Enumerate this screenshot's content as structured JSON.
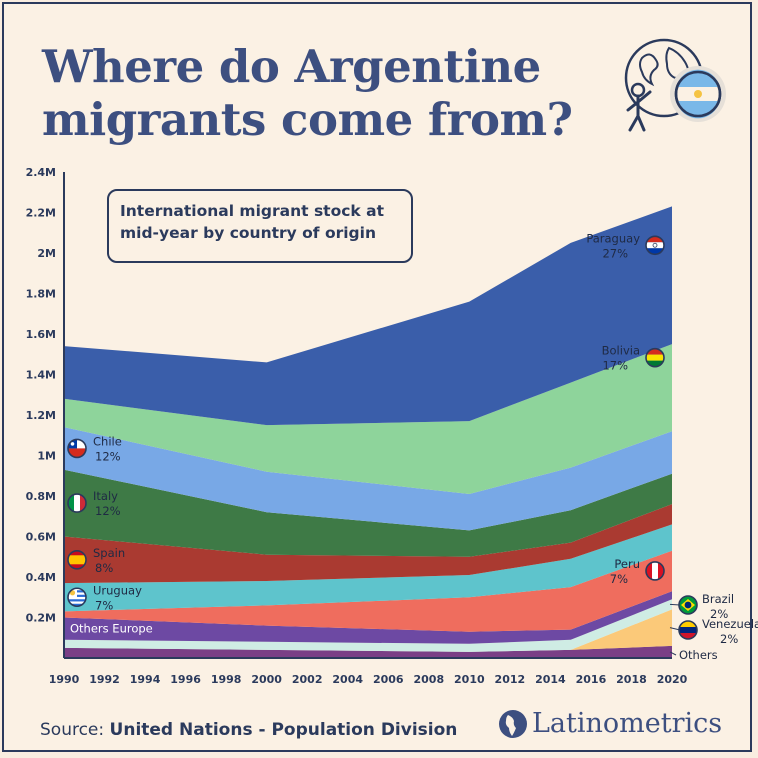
{
  "header": {
    "title": "Where do Argentine migrants come from?"
  },
  "chart_data": {
    "type": "area",
    "stacked": true,
    "title": "International migrant stock at mid-year by country of origin",
    "x": [
      1990,
      2000,
      2010,
      2015,
      2020
    ],
    "x_ticks": [
      "1990",
      "1992",
      "1994",
      "1996",
      "1998",
      "2000",
      "2002",
      "2004",
      "2006",
      "2008",
      "2010",
      "2012",
      "2014",
      "2016",
      "2018",
      "2020"
    ],
    "y_ticks": [
      "0.2M",
      "0.4M",
      "0.6M",
      "0.8M",
      "1M",
      "1.2M",
      "1.4M",
      "1.6M",
      "1.8M",
      "2M",
      "2.2M",
      "2.4M"
    ],
    "ylim": [
      0,
      2400000
    ],
    "grid": false,
    "series": [
      {
        "name": "Others",
        "label": "Others",
        "pct": "",
        "color": "#7a3f86",
        "values": [
          50000,
          40000,
          30000,
          40000,
          60000
        ]
      },
      {
        "name": "Venezuela",
        "label": "Venezuela",
        "pct": "2%",
        "color": "#fbc979",
        "values": [
          0,
          0,
          0,
          0,
          180000
        ]
      },
      {
        "name": "Brazil",
        "label": "Brazil",
        "pct": "2%",
        "color": "#cfece4",
        "values": [
          40000,
          40000,
          40000,
          50000,
          50000
        ]
      },
      {
        "name": "Others Europe",
        "label": "Others Europe",
        "pct": "",
        "color": "#6d49a3",
        "values": [
          110000,
          80000,
          60000,
          50000,
          40000
        ]
      },
      {
        "name": "Peru",
        "label": "Peru",
        "pct": "7%",
        "color": "#ef6d5e",
        "values": [
          30000,
          100000,
          170000,
          210000,
          200000
        ]
      },
      {
        "name": "Uruguay",
        "label": "Uruguay",
        "pct": "7%",
        "color": "#5ec4cc",
        "values": [
          140000,
          120000,
          110000,
          140000,
          130000
        ]
      },
      {
        "name": "Spain",
        "label": "Spain",
        "pct": "8%",
        "color": "#aa3a31",
        "values": [
          230000,
          130000,
          90000,
          80000,
          100000
        ]
      },
      {
        "name": "Italy",
        "label": "Italy",
        "pct": "12%",
        "color": "#3e7a46",
        "values": [
          330000,
          210000,
          130000,
          160000,
          150000
        ]
      },
      {
        "name": "Chile",
        "label": "Chile",
        "pct": "12%",
        "color": "#78a8e6",
        "values": [
          210000,
          200000,
          180000,
          210000,
          210000
        ]
      },
      {
        "name": "Bolivia",
        "label": "Bolivia",
        "pct": "17%",
        "color": "#8ed49b",
        "values": [
          140000,
          230000,
          360000,
          420000,
          430000
        ]
      },
      {
        "name": "Paraguay",
        "label": "Paraguay",
        "pct": "27%",
        "color": "#3a5eaa",
        "values": [
          260000,
          310000,
          590000,
          690000,
          680000
        ]
      }
    ]
  },
  "footer": {
    "source_prefix": "Source: ",
    "source_name": "United Nations - Population Division",
    "brand": "Latinometrics"
  },
  "colors": {
    "background": "#fbf1e4",
    "title": "#3d4f80",
    "text": "#2b3a5c"
  }
}
